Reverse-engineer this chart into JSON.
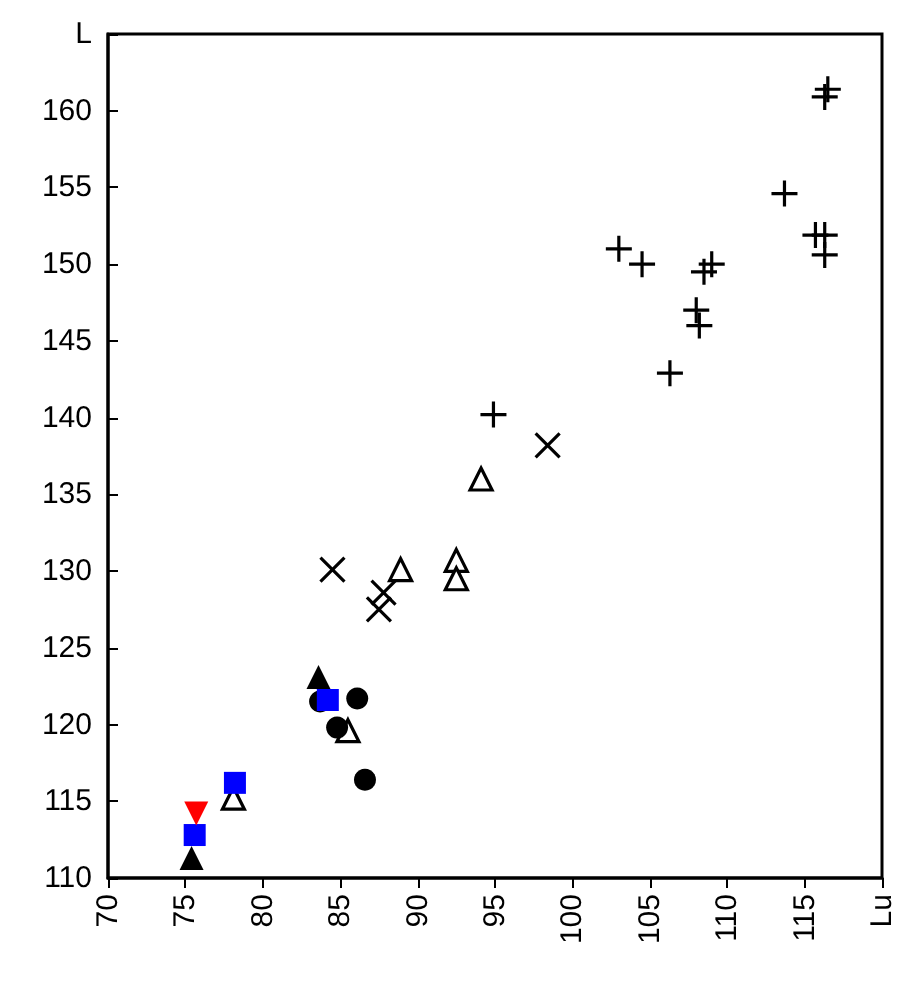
{
  "chart_data": {
    "type": "scatter",
    "xlim": [
      70,
      120
    ],
    "xticks": [
      70,
      75,
      80,
      85,
      90,
      95,
      100,
      105,
      110,
      115,
      {
        "value": 120,
        "label": "Lu"
      }
    ],
    "ylim": [
      110,
      165
    ],
    "yticks": [
      110,
      115,
      120,
      125,
      130,
      135,
      140,
      145,
      150,
      155,
      160,
      {
        "value": 165,
        "label": "L"
      }
    ],
    "grid": false,
    "series": [
      {
        "marker": "plus",
        "color": "#000000",
        "x": [
          94.9,
          103,
          104.5,
          106.3,
          108,
          108.2,
          108.5,
          109,
          113.7,
          115.7,
          116.3,
          116.3,
          116.3,
          116.5
        ],
        "values": [
          140.2,
          151,
          150,
          142.9,
          147,
          146,
          149.5,
          150,
          154.6,
          151.9,
          151.9,
          150.6,
          160.9,
          161.4
        ]
      },
      {
        "marker": "cross",
        "color": "#000000",
        "x": [
          84.5,
          87.8,
          87.5,
          98.4
        ],
        "values": [
          130.1,
          128.6,
          127.5,
          138.2
        ]
      },
      {
        "marker": "triangle-open",
        "color": "#000000",
        "x": [
          78.1,
          85.5,
          88.9,
          92.5,
          92.5,
          94.1
        ],
        "values": [
          115.2,
          119.6,
          130.1,
          130.7,
          129.5,
          136
        ]
      },
      {
        "marker": "triangle",
        "color": "#000000",
        "x": [
          75.4,
          83.6
        ],
        "values": [
          111.3,
          123.1
        ]
      },
      {
        "marker": "circle",
        "color": "#000000",
        "x": [
          83.7,
          86.1,
          84.8,
          86.6
        ],
        "values": [
          121.5,
          121.7,
          119.8,
          116.4
        ]
      },
      {
        "marker": "square",
        "color": "#0000ff",
        "x": [
          75.6,
          78.2,
          84.2
        ],
        "values": [
          112.8,
          116.2,
          121.6
        ]
      },
      {
        "marker": "triangle-down",
        "color": "#ff0000",
        "x": [
          75.7
        ],
        "values": [
          114.2
        ]
      }
    ]
  }
}
